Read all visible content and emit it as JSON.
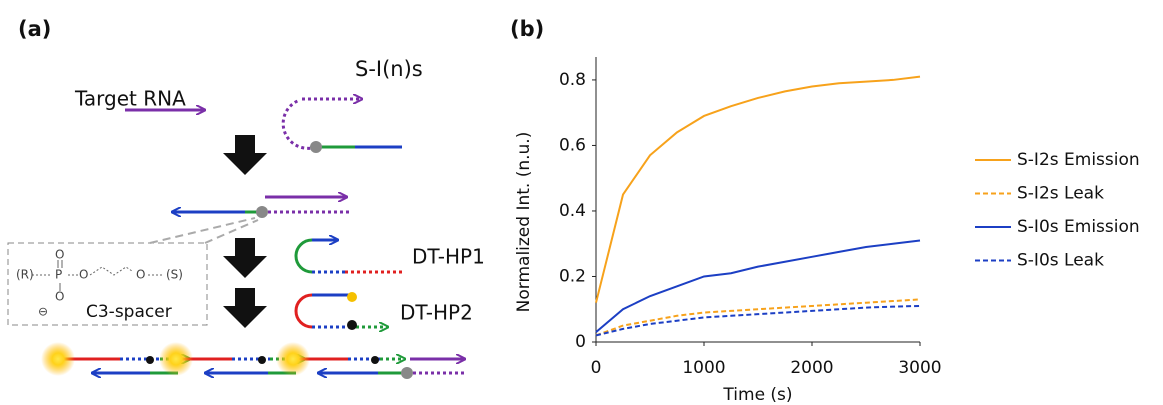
{
  "panel_a": {
    "label": "(a)",
    "target": "Target RNA",
    "probe": "S-I(n)s",
    "hp1": "DT-HP1",
    "hp2": "DT-HP2",
    "spacer": "C3-spacer",
    "structure": {
      "r": "(R)",
      "p": "P",
      "o_top": "O",
      "o_bottom": "O",
      "o_right": "O",
      "o_end": "O",
      "s": "(S)",
      "charge": "⊖"
    }
  },
  "chart_data": {
    "type": "line",
    "panel_label": "(b)",
    "xlabel": "Time (s)",
    "ylabel": "Normalized Int. (n.u.)",
    "x": [
      0,
      250,
      500,
      750,
      1000,
      1250,
      1500,
      1750,
      2000,
      2250,
      2500,
      2750,
      3000
    ],
    "series": [
      {
        "name": "S-I2s Emission",
        "color": "#f7a21b",
        "dashed": false,
        "values": [
          0.12,
          0.45,
          0.57,
          0.64,
          0.69,
          0.72,
          0.745,
          0.765,
          0.78,
          0.79,
          0.795,
          0.8,
          0.81
        ]
      },
      {
        "name": "S-I2s Leak",
        "color": "#f7a21b",
        "dashed": true,
        "values": [
          0.02,
          0.05,
          0.065,
          0.08,
          0.09,
          0.095,
          0.1,
          0.105,
          0.11,
          0.115,
          0.12,
          0.125,
          0.13
        ]
      },
      {
        "name": "S-I0s Emission",
        "color": "#1c3fc4",
        "dashed": false,
        "values": [
          0.03,
          0.1,
          0.14,
          0.17,
          0.2,
          0.21,
          0.23,
          0.245,
          0.26,
          0.275,
          0.29,
          0.3,
          0.31
        ]
      },
      {
        "name": "S-I0s Leak",
        "color": "#1c3fc4",
        "dashed": true,
        "values": [
          0.02,
          0.04,
          0.055,
          0.065,
          0.075,
          0.08,
          0.085,
          0.09,
          0.095,
          0.1,
          0.105,
          0.108,
          0.11
        ]
      }
    ],
    "xlim": [
      0,
      3000
    ],
    "ylim": [
      0,
      0.87
    ],
    "xticks": [
      0,
      1000,
      2000,
      3000
    ],
    "yticks": [
      0,
      0.2,
      0.4,
      0.6,
      0.8
    ],
    "legend": "right"
  }
}
